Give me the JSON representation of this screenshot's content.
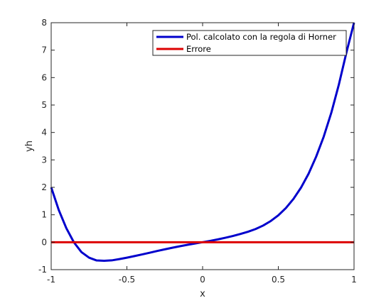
{
  "chart_data": {
    "type": "line",
    "title": "",
    "xlabel": "x",
    "ylabel": "yh",
    "xlim": [
      -1,
      1
    ],
    "ylim": [
      -1,
      8
    ],
    "xticks": [
      -1,
      -0.5,
      0,
      0.5,
      1
    ],
    "xtick_labels": [
      "-1",
      "-0.5",
      "0",
      "0.5",
      "1"
    ],
    "yticks": [
      -1,
      0,
      1,
      2,
      3,
      4,
      5,
      6,
      7,
      8
    ],
    "ytick_labels": [
      "-1",
      "0",
      "1",
      "2",
      "3",
      "4",
      "5",
      "6",
      "7",
      "8"
    ],
    "grid": false,
    "legend_position": "top-right",
    "series": [
      {
        "name": "Pol. calcolato con la regola di Horner",
        "color": "#0000cc",
        "x": [
          -1,
          -0.95,
          -0.9,
          -0.85,
          -0.8,
          -0.75,
          -0.7,
          -0.65,
          -0.6,
          -0.55,
          -0.5,
          -0.45,
          -0.4,
          -0.35,
          -0.3,
          -0.25,
          -0.2,
          -0.15,
          -0.1,
          -0.05,
          0,
          0.05,
          0.1,
          0.15,
          0.2,
          0.25,
          0.3,
          0.35,
          0.4,
          0.45,
          0.5,
          0.55,
          0.6,
          0.65,
          0.7,
          0.75,
          0.8,
          0.85,
          0.9,
          0.95,
          1
        ],
        "y": [
          2,
          1.174,
          0.511,
          -0.004,
          -0.362,
          -0.562,
          -0.665,
          -0.678,
          -0.662,
          -0.616,
          -0.563,
          -0.505,
          -0.445,
          -0.385,
          -0.32,
          -0.26,
          -0.202,
          -0.146,
          -0.095,
          -0.047,
          0,
          0.048,
          0.102,
          0.162,
          0.226,
          0.3,
          0.382,
          0.48,
          0.608,
          0.772,
          0.98,
          1.245,
          1.578,
          1.99,
          2.498,
          3.12,
          3.85,
          4.72,
          5.75,
          6.92,
          8
        ]
      },
      {
        "name": "Errore",
        "color": "#dd0000",
        "x": [
          -1,
          1
        ],
        "y": [
          0,
          0
        ]
      }
    ]
  }
}
